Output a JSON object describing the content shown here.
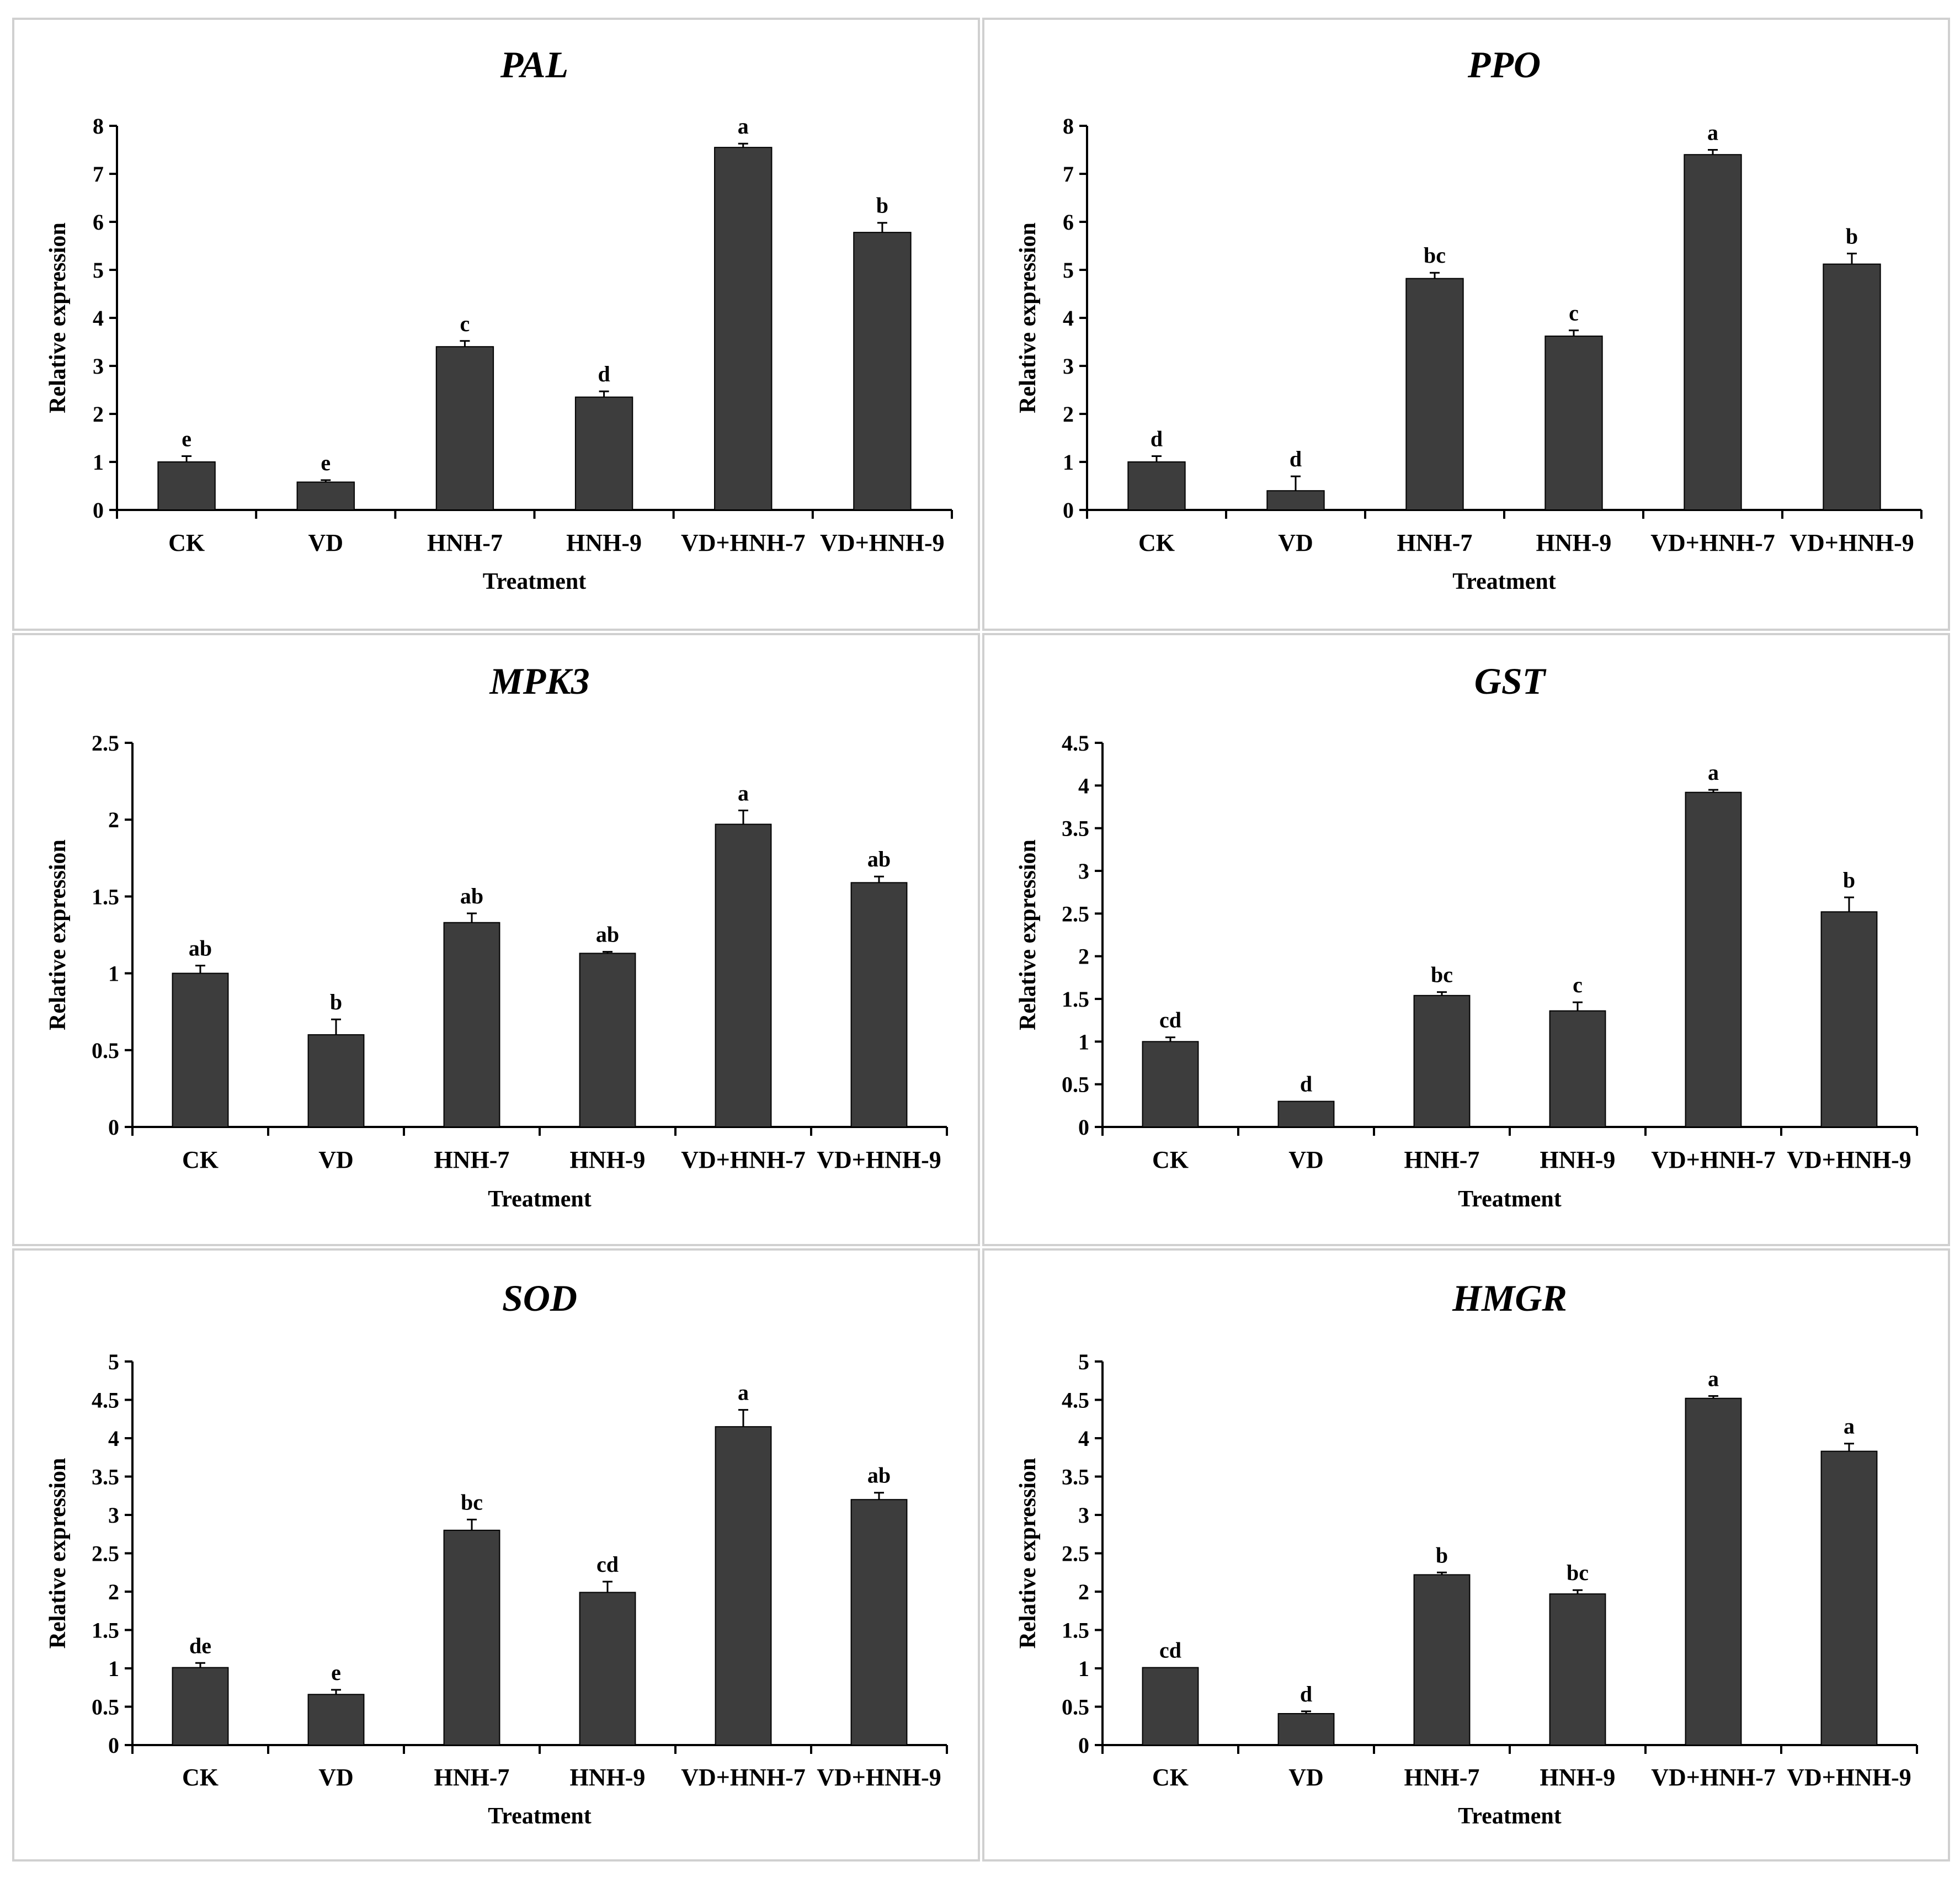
{
  "chart_data": [
    {
      "type": "bar",
      "title": "PAL",
      "xlabel": "Treatment",
      "ylabel": "Relative  expression",
      "categories": [
        "CK",
        "VD",
        "HNH-7",
        "HNH-9",
        "VD+HNH-7",
        "VD+HNH-9"
      ],
      "ylim": [
        0,
        8
      ],
      "yticks": [
        "0",
        "1",
        "2",
        "3",
        "4",
        "5",
        "6",
        "7",
        "8"
      ],
      "values": [
        1.0,
        0.58,
        3.4,
        2.35,
        7.55,
        5.78
      ],
      "errors": [
        0.12,
        0.04,
        0.12,
        0.12,
        0.08,
        0.2
      ],
      "letters": [
        "e",
        "e",
        "c",
        "d",
        "a",
        "b"
      ],
      "bar_color": "#3d3d3d"
    },
    {
      "type": "bar",
      "title": "PPO",
      "xlabel": "Treatment",
      "ylabel": "Relative  expression",
      "categories": [
        "CK",
        "VD",
        "HNH-7",
        "HNH-9",
        "VD+HNH-7",
        "VD+HNH-9"
      ],
      "ylim": [
        0,
        8
      ],
      "yticks": [
        "0",
        "1",
        "2",
        "3",
        "4",
        "5",
        "6",
        "7",
        "8"
      ],
      "values": [
        1.0,
        0.4,
        4.82,
        3.62,
        7.4,
        5.12
      ],
      "errors": [
        0.12,
        0.3,
        0.12,
        0.12,
        0.1,
        0.22
      ],
      "letters": [
        "d",
        "d",
        "bc",
        "c",
        "a",
        "b"
      ],
      "bar_color": "#3d3d3d"
    },
    {
      "type": "bar",
      "title": "MPK3",
      "xlabel": "Treatment",
      "ylabel": "Relative  expression",
      "categories": [
        "CK",
        "VD",
        "HNH-7",
        "HNH-9",
        "VD+HNH-7",
        "VD+HNH-9"
      ],
      "ylim": [
        0,
        2.5
      ],
      "yticks": [
        "0",
        "0.5",
        "1",
        "1.5",
        "2",
        "2.5"
      ],
      "values": [
        1.0,
        0.6,
        1.33,
        1.13,
        1.97,
        1.59
      ],
      "errors": [
        0.05,
        0.1,
        0.06,
        0.01,
        0.09,
        0.04
      ],
      "letters": [
        "ab",
        "b",
        "ab",
        "ab",
        "a",
        "ab"
      ],
      "bar_color": "#3d3d3d"
    },
    {
      "type": "bar",
      "title": "GST",
      "xlabel": "Treatment",
      "ylabel": "Relative  expression",
      "categories": [
        "CK",
        "VD",
        "HNH-7",
        "HNH-9",
        "VD+HNH-7",
        "VD+HNH-9"
      ],
      "ylim": [
        0,
        4.5
      ],
      "yticks": [
        "0",
        "0.5",
        "1",
        "1.5",
        "2",
        "2.5",
        "3",
        "3.5",
        "4",
        "4.5"
      ],
      "values": [
        1.0,
        0.3,
        1.54,
        1.36,
        3.92,
        2.52
      ],
      "errors": [
        0.05,
        0.0,
        0.04,
        0.1,
        0.03,
        0.17
      ],
      "letters": [
        "cd",
        "d",
        "bc",
        "c",
        "a",
        "b"
      ],
      "bar_color": "#3d3d3d"
    },
    {
      "type": "bar",
      "title": "SOD",
      "xlabel": "Treatment",
      "ylabel": "Relative  expression",
      "categories": [
        "CK",
        "VD",
        "HNH-7",
        "HNH-9",
        "VD+HNH-7",
        "VD+HNH-9"
      ],
      "ylim": [
        0,
        5
      ],
      "yticks": [
        "0",
        "0.5",
        "1",
        "1.5",
        "2",
        "2.5",
        "3",
        "3.5",
        "4",
        "4.5",
        "5"
      ],
      "values": [
        1.01,
        0.66,
        2.8,
        1.99,
        4.15,
        3.2
      ],
      "errors": [
        0.06,
        0.06,
        0.14,
        0.14,
        0.22,
        0.09
      ],
      "letters": [
        "de",
        "e",
        "bc",
        "cd",
        "a",
        "ab"
      ],
      "bar_color": "#3d3d3d"
    },
    {
      "type": "bar",
      "title": "HMGR",
      "xlabel": "Treatment",
      "ylabel": "Relative  expression",
      "categories": [
        "CK",
        "VD",
        "HNH-7",
        "HNH-9",
        "VD+HNH-7",
        "VD+HNH-9"
      ],
      "ylim": [
        0,
        5
      ],
      "yticks": [
        "0",
        "0.5",
        "1",
        "1.5",
        "2",
        "2.5",
        "3",
        "3.5",
        "4",
        "4.5",
        "5"
      ],
      "values": [
        1.01,
        0.41,
        2.22,
        1.97,
        4.52,
        3.83
      ],
      "errors": [
        0.0,
        0.03,
        0.03,
        0.05,
        0.03,
        0.1
      ],
      "letters": [
        "cd",
        "d",
        "b",
        "bc",
        "a",
        "a"
      ],
      "bar_color": "#3d3d3d"
    }
  ]
}
